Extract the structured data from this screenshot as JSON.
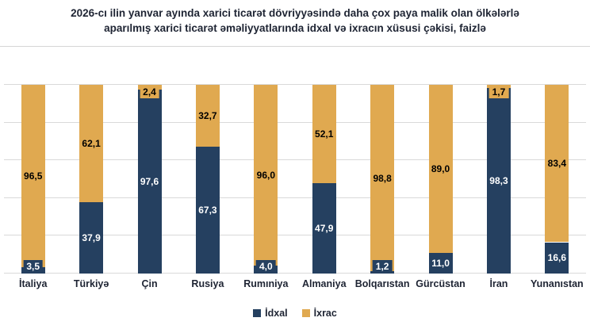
{
  "header": {
    "title_line1": "2026-cı ilin yanvar ayında xarici ticarət dövriyyəsində daha çox paya malik olan ölkələrlə",
    "title_line2": "aparılmış xarici ticarət əməliyyatlarında idxal və ixracın xüsusi çəkisi, faizlə"
  },
  "colors": {
    "idxal": "#254060",
    "ixrac": "#e0a950",
    "gridline": "#d9d9d9",
    "text": "#1e2433",
    "value_label_on_idxal": "#ffffff",
    "value_label_on_ixrac": "#000000"
  },
  "legend": {
    "items": [
      {
        "label": "İdxal",
        "color_key": "idxal"
      },
      {
        "label": "İxrac",
        "color_key": "ixrac"
      }
    ]
  },
  "chart_data": {
    "type": "bar",
    "variant": "stacked-column-100-percent",
    "title": "2026-cı ilin yanvar ayında xarici ticarət dövriyyəsində daha çox paya malik olan ölkələrlə aparılmış xarici ticarət əməliyyatlarında idxal və ixracın xüsusi çəkisi, faizlə",
    "unit": "faizlə (%)",
    "categories": [
      "İtaliya",
      "Türkiyə",
      "Çin",
      "Rusiya",
      "Rumıniya",
      "Almaniya",
      "Bolqarıstan",
      "Gürcüstan",
      "İran",
      "Yunanıstan"
    ],
    "series": [
      {
        "name": "İdxal",
        "values": [
          3.5,
          37.9,
          97.6,
          67.3,
          4.0,
          47.9,
          1.2,
          11.0,
          98.3,
          16.6
        ],
        "labels": [
          "3,5",
          "37,9",
          "97,6",
          "67,3",
          "4,0",
          "47,9",
          "1,2",
          "11,0",
          "98,3",
          "16,6"
        ]
      },
      {
        "name": "İxrac",
        "values": [
          96.5,
          62.1,
          2.4,
          32.7,
          96.0,
          52.1,
          98.8,
          89.0,
          1.7,
          83.4
        ],
        "labels": [
          "96,5",
          "62,1",
          "2,4",
          "32,7",
          "96,0",
          "52,1",
          "98,8",
          "89,0",
          "1,7",
          "83,4"
        ]
      }
    ],
    "ylim": [
      0,
      100
    ],
    "grid": true,
    "gridlines_pct": [
      0,
      20,
      40,
      60,
      80,
      100
    ],
    "legend_position": "bottom"
  }
}
